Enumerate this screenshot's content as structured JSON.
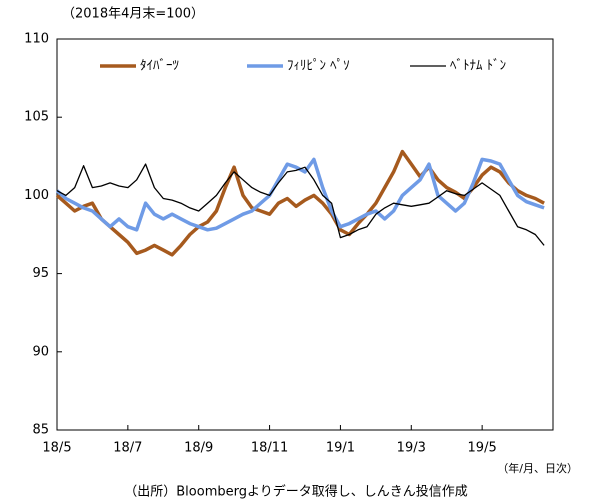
{
  "chart_data": {
    "type": "line",
    "subtitle": "（2018年4月末=100）",
    "x_note": "（年/月、日次）",
    "source": "（出所）Bloombergよりデータ取得し、しんきん投信作成",
    "x": [
      0,
      0.25,
      0.5,
      0.75,
      1,
      1.25,
      1.5,
      1.75,
      2,
      2.25,
      2.5,
      2.75,
      3,
      3.25,
      3.5,
      3.75,
      4,
      4.25,
      4.5,
      4.75,
      5,
      5.25,
      5.5,
      5.75,
      6,
      6.25,
      6.5,
      6.75,
      7,
      7.25,
      7.5,
      7.75,
      8,
      8.25,
      8.5,
      8.75,
      9,
      9.25,
      9.5,
      9.75,
      10,
      10.25,
      10.5,
      10.75,
      11,
      11.25,
      11.5,
      11.75,
      12,
      12.25,
      12.5,
      12.75,
      13,
      13.25,
      13.5,
      13.75
    ],
    "xlim": [
      0,
      14
    ],
    "xticks": [
      {
        "value": 0,
        "label": "18/5"
      },
      {
        "value": 2,
        "label": "18/7"
      },
      {
        "value": 4,
        "label": "18/9"
      },
      {
        "value": 6,
        "label": "18/11"
      },
      {
        "value": 8,
        "label": "19/1"
      },
      {
        "value": 10,
        "label": "19/3"
      },
      {
        "value": 12,
        "label": "19/5"
      }
    ],
    "ylim": [
      85,
      110
    ],
    "yticks": [
      85,
      90,
      95,
      100,
      105,
      110
    ],
    "grid": false,
    "legend": "top",
    "series": [
      {
        "name": "ﾀｲﾊﾞｰﾂ",
        "color": "#a65a1e",
        "width": 3.5,
        "values": [
          100,
          99.5,
          99,
          99.3,
          99.5,
          98.5,
          98,
          97.5,
          97,
          96.3,
          96.5,
          96.8,
          96.5,
          96.2,
          96.8,
          97.5,
          98,
          98.3,
          99,
          100.5,
          101.8,
          100,
          99.2,
          99,
          98.8,
          99.5,
          99.8,
          99.3,
          99.7,
          100,
          99.5,
          98.8,
          97.8,
          97.5,
          98.2,
          98.8,
          99.5,
          100.5,
          101.5,
          102.8,
          102,
          101.2,
          101.8,
          101,
          100.5,
          100.2,
          99.8,
          100.5,
          101.3,
          101.8,
          101.5,
          100.8,
          100.3,
          100,
          99.8,
          99.5
        ]
      },
      {
        "name": "ﾌｨﾘﾋﾟﾝ ﾍﾟｿ",
        "color": "#6f9be6",
        "width": 3.5,
        "values": [
          100.3,
          99.8,
          99.5,
          99.2,
          99,
          98.5,
          98,
          98.5,
          98,
          97.8,
          99.5,
          98.8,
          98.5,
          98.8,
          98.5,
          98.2,
          98,
          97.8,
          97.9,
          98.2,
          98.5,
          98.8,
          99,
          99.5,
          100,
          101,
          102,
          101.8,
          101.5,
          102.3,
          100.5,
          99,
          98,
          98.2,
          98.5,
          98.8,
          99,
          98.5,
          99,
          100,
          100.5,
          101,
          102,
          100,
          99.5,
          99,
          99.5,
          100.8,
          102.3,
          102.2,
          102,
          101,
          100,
          99.6,
          99.4,
          99.2
        ]
      },
      {
        "name": "ﾍﾞﾄﾅﾑ ﾄﾞﾝ",
        "color": "#000000",
        "width": 1.3,
        "values": [
          100.3,
          100,
          100.5,
          101.9,
          100.5,
          100.6,
          100.8,
          100.6,
          100.5,
          101,
          102,
          100.5,
          99.8,
          99.7,
          99.5,
          99.2,
          99,
          99.5,
          100,
          100.8,
          101.5,
          101,
          100.5,
          100.2,
          100,
          100.8,
          101.5,
          101.6,
          101.8,
          101,
          100,
          99.5,
          97.3,
          97.5,
          97.8,
          98,
          98.8,
          99.2,
          99.5,
          99.4,
          99.3,
          99.4,
          99.5,
          99.9,
          100.3,
          100.1,
          100,
          100.4,
          100.8,
          100.4,
          100,
          99,
          98,
          97.8,
          97.5,
          96.8
        ]
      }
    ]
  }
}
